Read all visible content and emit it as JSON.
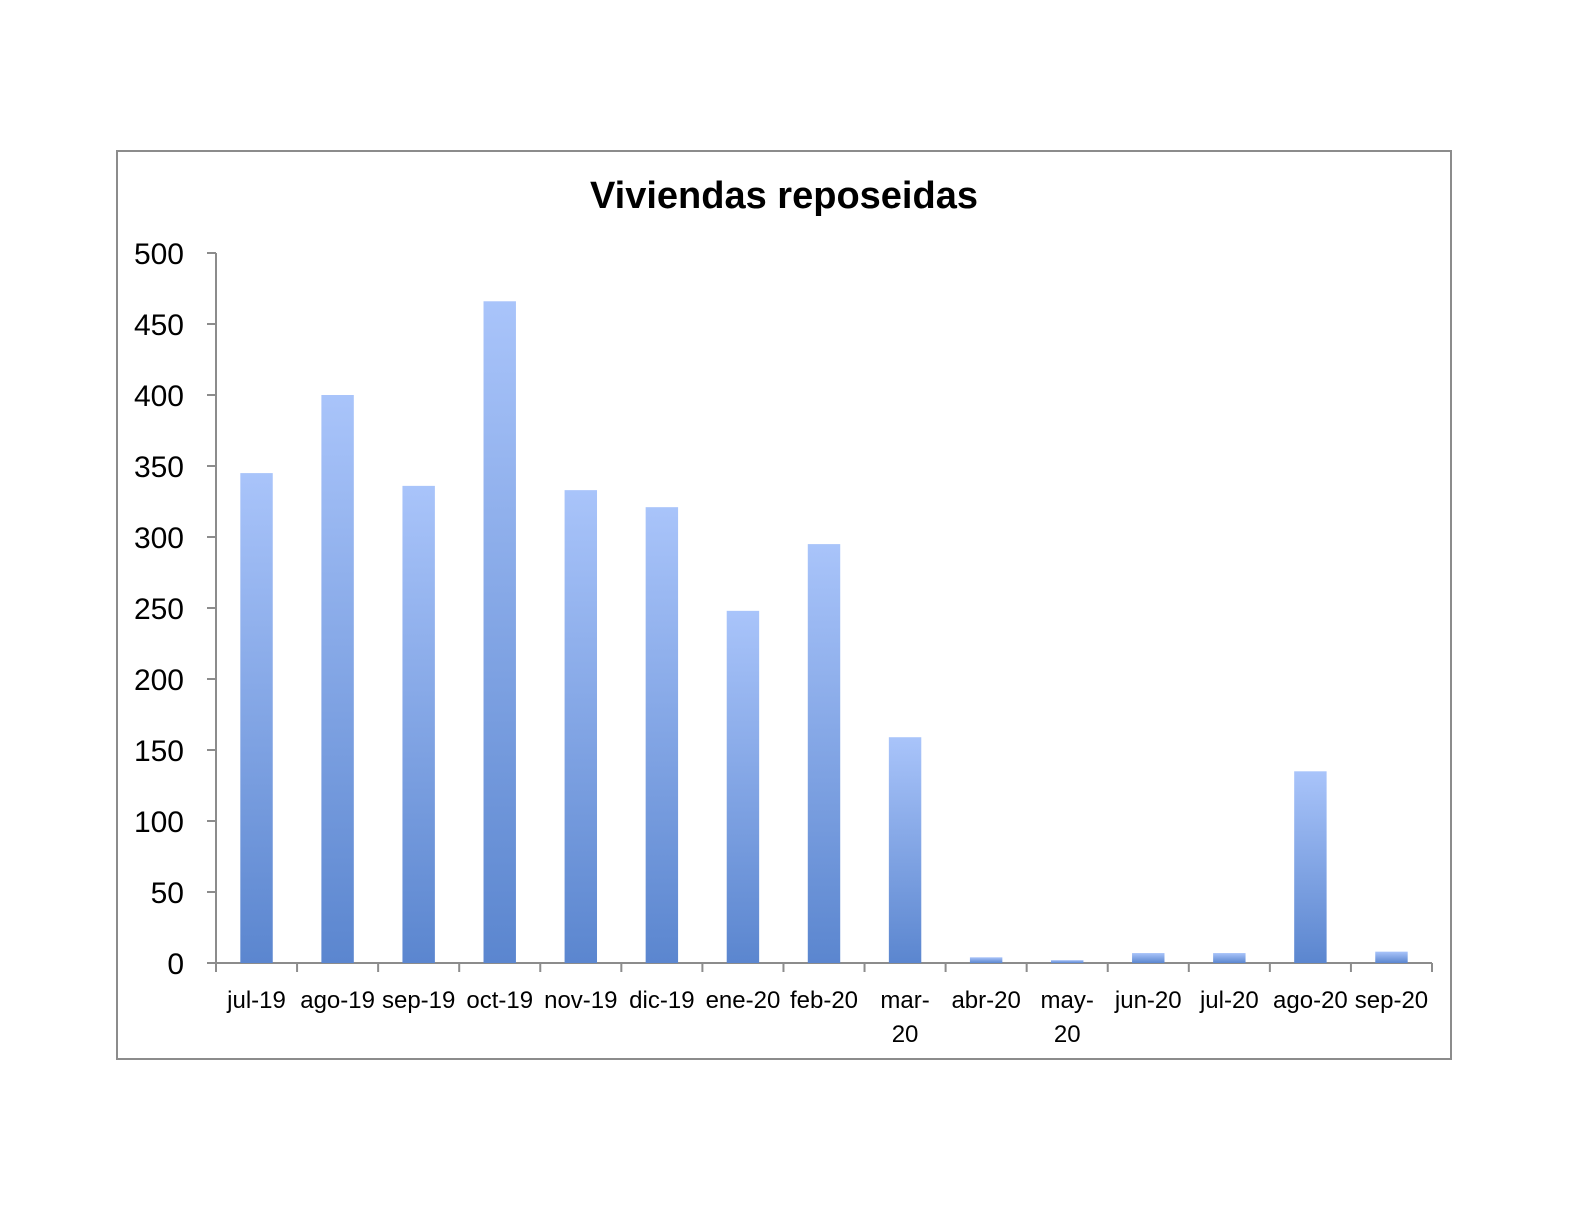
{
  "chart_data": {
    "type": "bar",
    "title": "Viviendas reposeidas",
    "xlabel": "",
    "ylabel": "",
    "categories": [
      "jul-19",
      "ago-19",
      "sep-19",
      "oct-19",
      "nov-19",
      "dic-19",
      "ene-20",
      "feb-20",
      "mar-20",
      "abr-20",
      "may-20",
      "jun-20",
      "jul-20",
      "ago-20",
      "sep-20"
    ],
    "category_lines": [
      [
        "jul-19"
      ],
      [
        "ago-19"
      ],
      [
        "sep-19"
      ],
      [
        "oct-19"
      ],
      [
        "nov-19"
      ],
      [
        "dic-19"
      ],
      [
        "ene-20"
      ],
      [
        "feb-20"
      ],
      [
        "mar-",
        "20"
      ],
      [
        "abr-20"
      ],
      [
        "may-",
        "20"
      ],
      [
        "jun-20"
      ],
      [
        "jul-20"
      ],
      [
        "ago-20"
      ],
      [
        "sep-20"
      ]
    ],
    "values": [
      345,
      400,
      336,
      466,
      333,
      321,
      248,
      295,
      159,
      4,
      2,
      7,
      7,
      135,
      8
    ],
    "ylim": [
      0,
      500
    ],
    "yticks": [
      0,
      50,
      100,
      150,
      200,
      250,
      300,
      350,
      400,
      450,
      500
    ],
    "grid": false,
    "legend": "none",
    "bar_color_top": "#a9c4fa",
    "bar_color_bottom": "#5b86cf",
    "axis_color": "#8c8c8c"
  }
}
